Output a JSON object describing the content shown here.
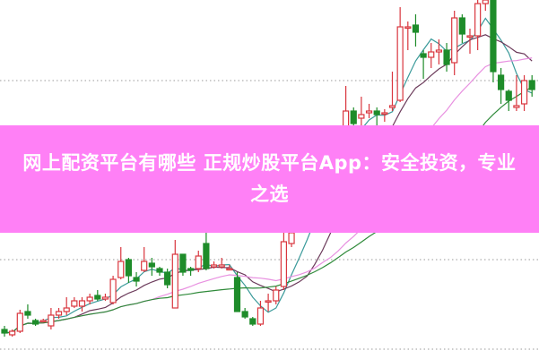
{
  "banner": {
    "title": "网上配资平台有哪些 正规炒股平台App：安全投资，专业之选",
    "background_color": "#ff80f6",
    "text_color": "#ffffff"
  },
  "chart_data": {
    "type": "candlestick",
    "grid": "dotted horizontal",
    "ylim": [
      0,
      100
    ],
    "up_color": "#d9363e",
    "down_color": "#1e8c2a",
    "ma_periods": [
      5,
      10,
      20,
      30
    ],
    "ma_colors": [
      "#3a9a9a",
      "#6b3a5a",
      "#e890e0",
      "#2f8a3a"
    ],
    "candles_ochl": [
      [
        8,
        7,
        9,
        6
      ],
      [
        6.5,
        7.5,
        8,
        6
      ],
      [
        7.5,
        12.5,
        13.5,
        7
      ],
      [
        13,
        12,
        15,
        11
      ],
      [
        10.5,
        9.5,
        11,
        9
      ],
      [
        10.5,
        10.5,
        11,
        10
      ],
      [
        9,
        12,
        14,
        8
      ],
      [
        12,
        13,
        14,
        11
      ],
      [
        13,
        14,
        17,
        12
      ],
      [
        14.5,
        16,
        17,
        14
      ],
      [
        14.5,
        16,
        17,
        13
      ],
      [
        16,
        17,
        18,
        15
      ],
      [
        17.5,
        16.5,
        19,
        16
      ],
      [
        16.5,
        17,
        18,
        16
      ],
      [
        15.5,
        22,
        23,
        15
      ],
      [
        22.5,
        27,
        31,
        22
      ],
      [
        27.5,
        23,
        28,
        21
      ],
      [
        22.5,
        21.5,
        24,
        20
      ],
      [
        24.5,
        27,
        31,
        24
      ],
      [
        26.5,
        25.5,
        28,
        23
      ],
      [
        25,
        24,
        25.5,
        23
      ],
      [
        24,
        20.5,
        25,
        19.5
      ],
      [
        14,
        29,
        33,
        14
      ],
      [
        29,
        24,
        29,
        23
      ],
      [
        25,
        24.5,
        25.5,
        23
      ],
      [
        25,
        28.5,
        30,
        24
      ],
      [
        32,
        25,
        35.5,
        24.5
      ],
      [
        25.5,
        26,
        27,
        25
      ],
      [
        25.5,
        26,
        28,
        25
      ],
      [
        25,
        25,
        26,
        24.5
      ],
      [
        22.5,
        13,
        24,
        13
      ],
      [
        13,
        11.5,
        14,
        11
      ],
      [
        11,
        9.5,
        11.5,
        9
      ],
      [
        9.5,
        14,
        16,
        9
      ],
      [
        16,
        16,
        18,
        13
      ],
      [
        16,
        19,
        20,
        15
      ],
      [
        20,
        32.5,
        37.5,
        19
      ],
      [
        32,
        35,
        37,
        31
      ],
      [
        36,
        37.5,
        39,
        35
      ],
      [
        37,
        41,
        43,
        36
      ],
      [
        41,
        46,
        48,
        40
      ],
      [
        46,
        51,
        53,
        45
      ],
      [
        51,
        56,
        58,
        50
      ],
      [
        56,
        61,
        63,
        55
      ],
      [
        58,
        69,
        76,
        57
      ],
      [
        69,
        65.5,
        70,
        58
      ],
      [
        67,
        68,
        73,
        64
      ],
      [
        68.5,
        69,
        71,
        67
      ],
      [
        69,
        68,
        70,
        61
      ],
      [
        68.5,
        68.5,
        69.5,
        66
      ],
      [
        70,
        70.5,
        80,
        69
      ],
      [
        72,
        92.5,
        98,
        71.5
      ],
      [
        92.5,
        92.5,
        94,
        86
      ],
      [
        93,
        91,
        96,
        87
      ],
      [
        85,
        84,
        86,
        78
      ],
      [
        84,
        85.5,
        88,
        81
      ],
      [
        85.5,
        86,
        89,
        82
      ],
      [
        86,
        82,
        88,
        80
      ],
      [
        82.5,
        95,
        97,
        79
      ],
      [
        95,
        90.5,
        96,
        88
      ],
      [
        90,
        90,
        92,
        85
      ],
      [
        90,
        99,
        100,
        86
      ],
      [
        99,
        100,
        100,
        97
      ],
      [
        100,
        80,
        100,
        77
      ],
      [
        79,
        75,
        81,
        71
      ],
      [
        74.5,
        72,
        75,
        69
      ],
      [
        70,
        70.5,
        79,
        69
      ],
      [
        71,
        77.5,
        79,
        69
      ],
      [
        77.5,
        75,
        79,
        73
      ]
    ]
  }
}
